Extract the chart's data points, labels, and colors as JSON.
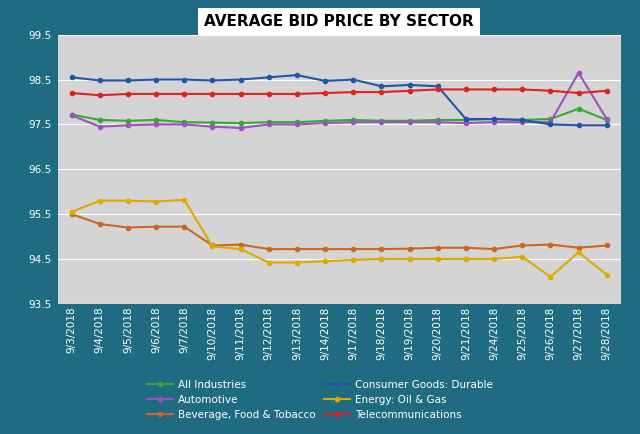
{
  "title": "AVERAGE BID PRICE BY SECTOR",
  "dates": [
    "9/3/2018",
    "9/4/2018",
    "9/5/2018",
    "9/6/2018",
    "9/7/2018",
    "9/10/2018",
    "9/11/2018",
    "9/12/2018",
    "9/13/2018",
    "9/14/2018",
    "9/17/2018",
    "9/18/2018",
    "9/19/2018",
    "9/20/2018",
    "9/21/2018",
    "9/24/2018",
    "9/25/2018",
    "9/26/2018",
    "9/27/2018",
    "9/28/2018"
  ],
  "ylim": [
    93.5,
    99.5
  ],
  "yticks": [
    93.5,
    94.5,
    95.5,
    96.5,
    97.5,
    98.5,
    99.5
  ],
  "ytick_labels": [
    "93.5",
    "94.5",
    "95.5",
    "96.5",
    "97.5",
    "98.5",
    "99.5"
  ],
  "series": [
    {
      "name": "All Industries",
      "color": "#33aa33",
      "values": [
        97.72,
        97.6,
        97.58,
        97.6,
        97.55,
        97.54,
        97.53,
        97.55,
        97.55,
        97.58,
        97.6,
        97.58,
        97.58,
        97.6,
        97.6,
        97.62,
        97.6,
        97.62,
        97.85,
        97.6
      ]
    },
    {
      "name": "Automotive",
      "color": "#9955bb",
      "values": [
        97.7,
        97.45,
        97.48,
        97.5,
        97.5,
        97.45,
        97.42,
        97.5,
        97.5,
        97.53,
        97.55,
        97.55,
        97.55,
        97.55,
        97.53,
        97.55,
        97.55,
        97.55,
        98.65,
        97.62
      ]
    },
    {
      "name": "Beverage, Food & Tobacco",
      "color": "#cc6622",
      "values": [
        95.5,
        95.28,
        95.2,
        95.22,
        95.22,
        94.8,
        94.82,
        94.72,
        94.72,
        94.72,
        94.72,
        94.72,
        94.73,
        94.75,
        94.75,
        94.72,
        94.8,
        94.82,
        94.75,
        94.8
      ]
    },
    {
      "name": "Consumer Goods: Durable",
      "color": "#2255aa",
      "values": [
        98.55,
        98.48,
        98.48,
        98.5,
        98.5,
        98.48,
        98.5,
        98.55,
        98.6,
        98.47,
        98.5,
        98.35,
        98.38,
        98.35,
        97.62,
        97.62,
        97.6,
        97.5,
        97.48,
        97.48
      ]
    },
    {
      "name": "Energy: Oil & Gas",
      "color": "#ddaa00",
      "values": [
        95.55,
        95.8,
        95.8,
        95.78,
        95.82,
        94.78,
        94.72,
        94.42,
        94.42,
        94.45,
        94.48,
        94.5,
        94.5,
        94.5,
        94.5,
        94.5,
        94.55,
        94.1,
        94.65,
        94.15
      ]
    },
    {
      "name": "Telecommunications",
      "color": "#dd2222",
      "values": [
        98.2,
        98.15,
        98.18,
        98.18,
        98.18,
        98.18,
        98.18,
        98.18,
        98.18,
        98.2,
        98.22,
        98.22,
        98.25,
        98.28,
        98.28,
        98.28,
        98.28,
        98.25,
        98.2,
        98.25
      ]
    }
  ],
  "plot_bg": "#d4d4d4",
  "outer_bg": "#1e6b82",
  "grid_color": "#bbbbbb",
  "title_fontsize": 11,
  "tick_fontsize": 7.5,
  "legend_fontsize": 7.5,
  "legend_text_color": "#ffffff"
}
